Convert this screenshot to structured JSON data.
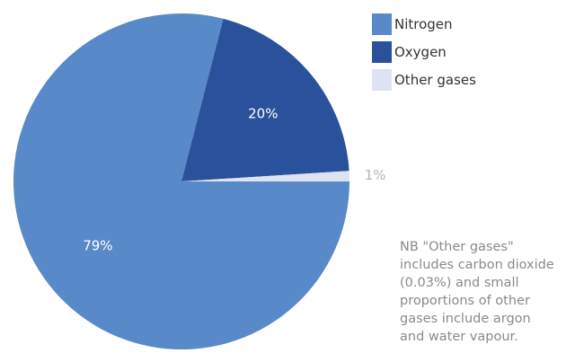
{
  "chart_data": {
    "type": "pie",
    "categories": [
      "Nitrogen",
      "Oxygen",
      "Other gases"
    ],
    "values": [
      79,
      20,
      1
    ],
    "data_labels": [
      "79%",
      "20%",
      "1%"
    ],
    "colors": [
      "#5889c8",
      "#2a519b",
      "#dde3f1"
    ],
    "label_colors": [
      "#ffffff",
      "#ffffff",
      "#b4b4b4"
    ],
    "title": "",
    "legend_position": "top-right",
    "start_angle_deg": 0,
    "direction": "clockwise"
  },
  "note": {
    "lines": [
      "NB \"Other gases\"",
      "includes carbon dioxide",
      "(0.03%) and small",
      "proportions of other",
      "gases include argon",
      "and water vapour."
    ]
  }
}
